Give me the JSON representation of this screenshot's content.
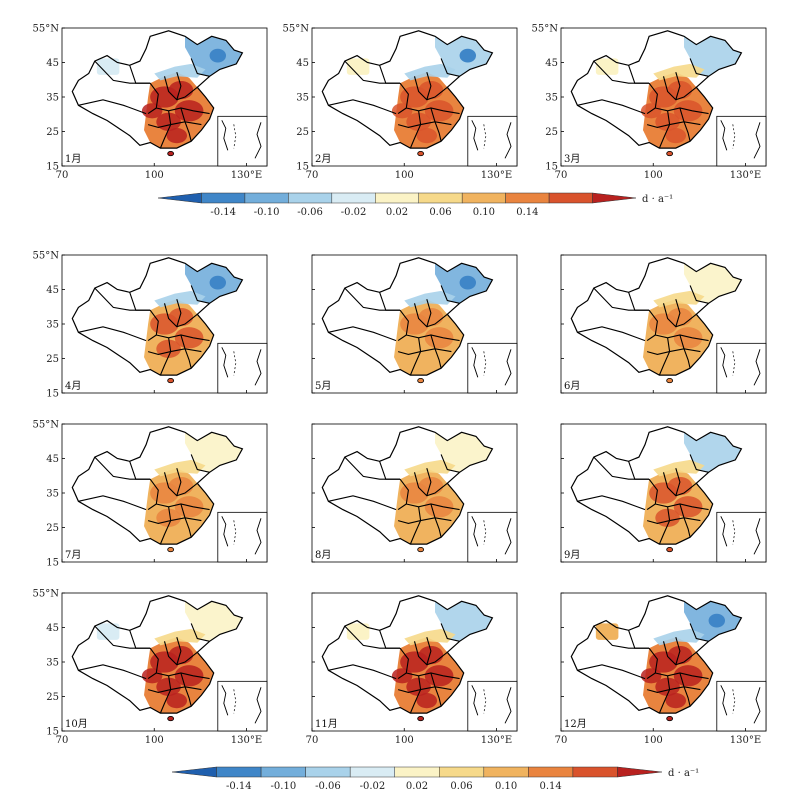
{
  "axes": {
    "lat_ticks": [
      "55°N",
      "45",
      "35",
      "25",
      "15"
    ],
    "lon_ticks": [
      "70",
      "100",
      "130°E"
    ]
  },
  "panels": [
    {
      "label": "1月",
      "intensity": 1.0,
      "north_blue": 0.9,
      "west_patch": "blue"
    },
    {
      "label": "2月",
      "intensity": 0.75,
      "north_blue": 0.7,
      "west_patch": "yellow"
    },
    {
      "label": "3月",
      "intensity": 0.8,
      "north_blue": 0.6,
      "west_patch": "yellow"
    },
    {
      "label": "4月",
      "intensity": 0.5,
      "north_blue": 0.8,
      "west_patch": "none"
    },
    {
      "label": "5月",
      "intensity": 0.4,
      "north_blue": 0.8,
      "west_patch": "none"
    },
    {
      "label": "6月",
      "intensity": 0.35,
      "north_blue": 0.4,
      "west_patch": "none"
    },
    {
      "label": "7月",
      "intensity": 0.45,
      "north_blue": 0.3,
      "west_patch": "none"
    },
    {
      "label": "8月",
      "intensity": 0.4,
      "north_blue": 0.4,
      "west_patch": "none"
    },
    {
      "label": "9月",
      "intensity": 0.5,
      "north_blue": 0.6,
      "west_patch": "none"
    },
    {
      "label": "10月",
      "intensity": 0.85,
      "north_blue": 0.4,
      "west_patch": "blue"
    },
    {
      "label": "11月",
      "intensity": 0.9,
      "north_blue": 0.6,
      "west_patch": "yellow"
    },
    {
      "label": "12月",
      "intensity": 1.0,
      "north_blue": 0.9,
      "west_patch": "orange"
    }
  ],
  "colorbar": {
    "ticks": [
      "-0.14",
      "-0.10",
      "-0.06",
      "-0.02",
      "0.02",
      "0.06",
      "0.10",
      "0.14"
    ],
    "unit": "d · a⁻¹",
    "colors": [
      "#1f5fae",
      "#3f86c8",
      "#73aedb",
      "#a9d2ea",
      "#d9ecf4",
      "#fbf3c6",
      "#f6d98a",
      "#f0b35f",
      "#e9843f",
      "#d9532c",
      "#b8211f"
    ]
  }
}
